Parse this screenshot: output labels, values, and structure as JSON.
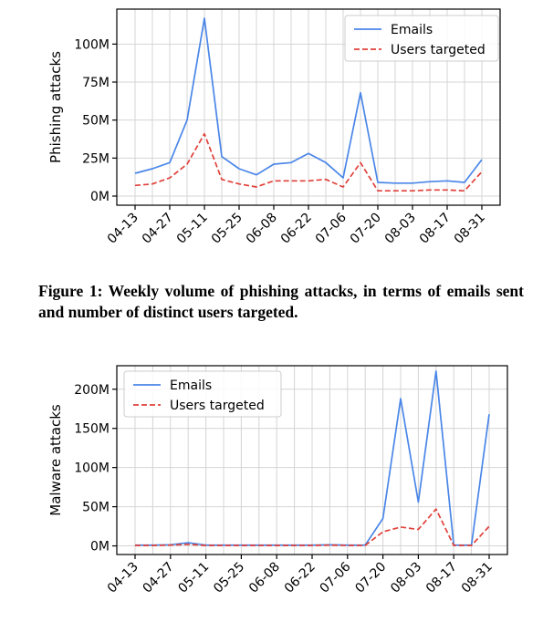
{
  "caption": "Figure 1: Weekly volume of phishing attacks, in terms of emails sent and number of distinct users targeted.",
  "chart_data": [
    {
      "type": "line",
      "title": "",
      "xlabel": "",
      "ylabel": "Phishing attacks",
      "x": [
        "04-13",
        "04-20",
        "04-27",
        "05-04",
        "05-11",
        "05-18",
        "05-25",
        "06-01",
        "06-08",
        "06-15",
        "06-22",
        "06-29",
        "07-06",
        "07-13",
        "07-20",
        "07-27",
        "08-03",
        "08-10",
        "08-17",
        "08-24",
        "08-31"
      ],
      "xtick_labels": [
        "04-13",
        "04-27",
        "05-11",
        "05-25",
        "06-08",
        "06-22",
        "07-06",
        "07-20",
        "08-03",
        "08-17",
        "08-31"
      ],
      "ytick_labels": [
        "0M",
        "25M",
        "50M",
        "75M",
        "100M"
      ],
      "yticks": [
        0,
        25,
        50,
        75,
        100
      ],
      "ylim": [
        -6,
        123
      ],
      "grid": true,
      "legend_position": "top-right",
      "series": [
        {
          "name": "Emails",
          "color": "#4a86e8",
          "dash": "solid",
          "values": [
            15,
            18,
            22,
            50,
            117,
            26,
            18,
            14,
            21,
            22,
            28,
            22,
            12,
            68,
            9,
            8.5,
            8.5,
            9.5,
            10,
            9,
            24
          ]
        },
        {
          "name": "Users targeted",
          "color": "#e0413a",
          "dash": "dashed",
          "values": [
            7,
            8,
            12,
            21,
            41,
            11,
            8,
            6,
            10,
            10,
            10,
            11,
            6,
            22,
            3.5,
            3.5,
            3.5,
            4,
            4,
            3.5,
            16
          ]
        }
      ]
    },
    {
      "type": "line",
      "title": "",
      "xlabel": "",
      "ylabel": "Malware attacks",
      "x": [
        "04-13",
        "04-20",
        "04-27",
        "05-04",
        "05-11",
        "05-18",
        "05-25",
        "06-01",
        "06-08",
        "06-15",
        "06-22",
        "06-29",
        "07-06",
        "07-13",
        "07-20",
        "07-27",
        "08-03",
        "08-10",
        "08-17",
        "08-24",
        "08-31"
      ],
      "xtick_labels": [
        "04-13",
        "04-27",
        "05-11",
        "05-25",
        "06-08",
        "06-22",
        "07-06",
        "07-20",
        "08-03",
        "08-17",
        "08-31"
      ],
      "ytick_labels": [
        "0M",
        "50M",
        "100M",
        "150M",
        "200M"
      ],
      "yticks": [
        0,
        50,
        100,
        150,
        200
      ],
      "ylim": [
        -11,
        230
      ],
      "grid": true,
      "legend_position": "top-left",
      "series": [
        {
          "name": "Emails",
          "color": "#4a86e8",
          "dash": "solid",
          "values": [
            1,
            1,
            1.5,
            4,
            1,
            1,
            1,
            1,
            1,
            1,
            1,
            1.5,
            1,
            1,
            35,
            188,
            56,
            223,
            1,
            1,
            168
          ]
        },
        {
          "name": "Users targeted",
          "color": "#e0413a",
          "dash": "dashed",
          "values": [
            0.5,
            0.5,
            1,
            2,
            0.5,
            0.5,
            0.5,
            0.5,
            0.5,
            0.5,
            0.5,
            1,
            0.5,
            0.5,
            18,
            24,
            21,
            47,
            0.5,
            0.5,
            25
          ]
        }
      ]
    }
  ]
}
